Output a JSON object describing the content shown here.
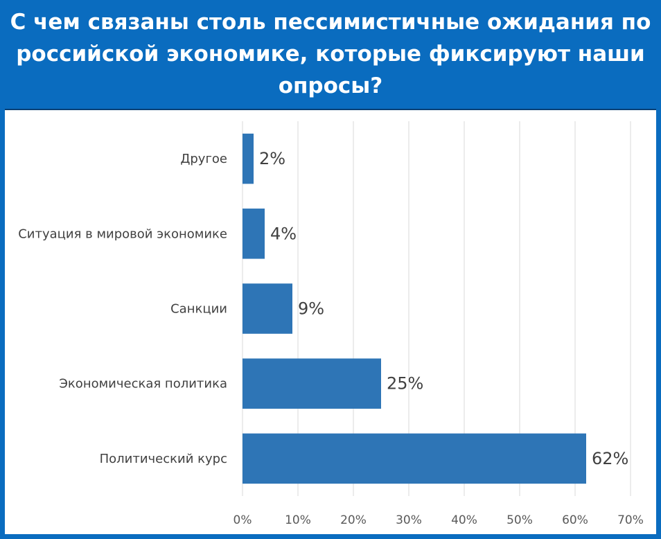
{
  "header": {
    "title": "С чем связаны столь пессимистичные ожидания по российской экономике, которые фиксируют наши опросы?"
  },
  "colors": {
    "background": "#0a6cbf",
    "bar": "#2e75b6",
    "grid": "#d9d9d9",
    "text": "#404040"
  },
  "chart_data": {
    "type": "bar",
    "orientation": "horizontal",
    "title": "",
    "xlabel": "",
    "ylabel": "",
    "categories": [
      "Другое",
      "Ситуация в мировой экономике",
      "Санкции",
      "Экономическая политика",
      "Политический курс"
    ],
    "values": [
      2,
      4,
      9,
      25,
      62
    ],
    "value_labels": [
      "2%",
      "4%",
      "9%",
      "25%",
      "62%"
    ],
    "xlim": [
      0,
      70
    ],
    "ticks": [
      0,
      10,
      20,
      30,
      40,
      50,
      60,
      70
    ],
    "tick_labels": [
      "0%",
      "10%",
      "20%",
      "30%",
      "40%",
      "50%",
      "60%",
      "70%"
    ],
    "grid": true,
    "legend": "none"
  }
}
